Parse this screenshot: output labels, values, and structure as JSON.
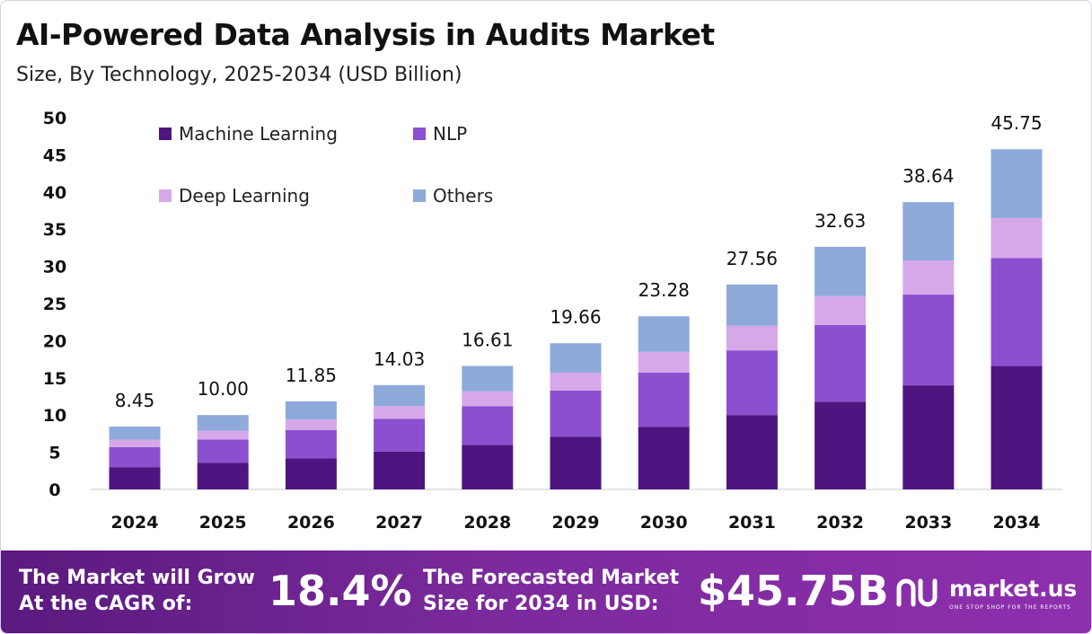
{
  "header": {
    "title": "AI-Powered Data Analysis in Audits Market",
    "subtitle": "Size, By Technology, 2025-2034 (USD Billion)"
  },
  "chart_data": {
    "type": "bar",
    "stacked": true,
    "categories": [
      "2024",
      "2025",
      "2026",
      "2027",
      "2028",
      "2029",
      "2030",
      "2031",
      "2032",
      "2033",
      "2034"
    ],
    "totals": [
      8.45,
      10.0,
      11.85,
      14.03,
      16.61,
      19.66,
      23.28,
      27.56,
      32.63,
      38.64,
      45.75
    ],
    "total_labels": [
      "8.45",
      "10.00",
      "11.85",
      "14.03",
      "16.61",
      "19.66",
      "23.28",
      "27.56",
      "32.63",
      "38.64",
      "45.75"
    ],
    "series": [
      {
        "name": "Machine Learning",
        "color": "#4e1580",
        "values": [
          3.0,
          3.6,
          4.2,
          5.1,
          6.0,
          7.1,
          8.4,
          10.0,
          11.8,
          14.0,
          16.6
        ]
      },
      {
        "name": "NLP",
        "color": "#8c4fcf",
        "values": [
          2.7,
          3.1,
          3.8,
          4.4,
          5.2,
          6.2,
          7.3,
          8.7,
          10.3,
          12.2,
          14.5
        ]
      },
      {
        "name": "Deep Learning",
        "color": "#d6a8ea",
        "values": [
          1.0,
          1.2,
          1.4,
          1.7,
          2.0,
          2.4,
          2.8,
          3.3,
          3.9,
          4.6,
          5.4
        ]
      },
      {
        "name": "Others",
        "color": "#8eaadb",
        "values": [
          1.75,
          2.1,
          2.45,
          2.83,
          3.41,
          3.96,
          4.78,
          5.56,
          6.63,
          7.84,
          9.25
        ]
      }
    ],
    "yticks": [
      "0",
      "5",
      "10",
      "15",
      "20",
      "25",
      "30",
      "35",
      "40",
      "45",
      "50"
    ],
    "ylim": [
      0,
      50
    ],
    "grid": false,
    "legend_position": "top-left"
  },
  "footer": {
    "cagr_line1": "The Market will Grow",
    "cagr_line2": "At the CAGR of:",
    "cagr_value": "18.4%",
    "forecast_line1": "The Forecasted Market",
    "forecast_line2": "Size for 2034 in USD:",
    "forecast_value": "$45.75B",
    "brand_name": "market.us",
    "brand_tagline": "ONE STOP SHOP FOR THE REPORTS"
  }
}
